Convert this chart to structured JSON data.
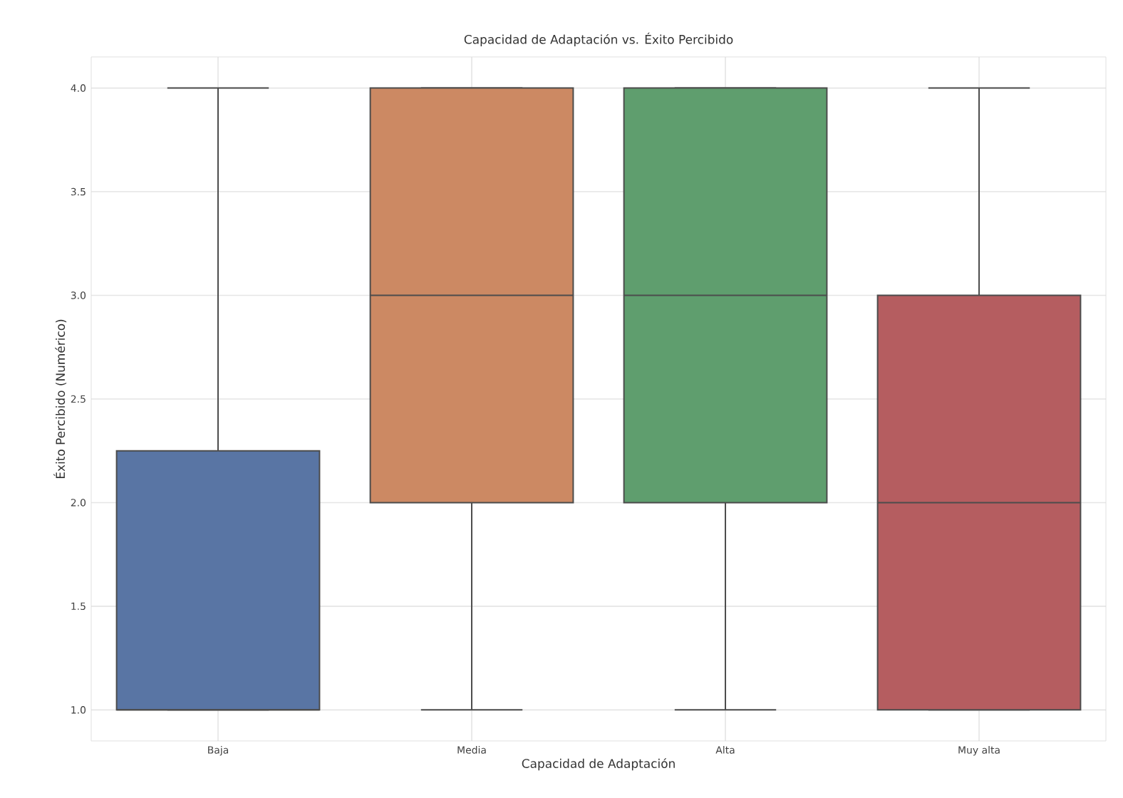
{
  "chart_data": {
    "type": "box",
    "title": "Capacidad de Adaptación vs. Éxito Percibido",
    "xlabel": "Capacidad de Adaptación",
    "ylabel": "Éxito Percibido (Numérico)",
    "categories": [
      "Baja",
      "Media",
      "Alta",
      "Muy alta"
    ],
    "colors": [
      "#5975a4",
      "#cc8963",
      "#5f9e6e",
      "#b55d60"
    ],
    "boxes": [
      {
        "low": 1,
        "q1": 1,
        "median": 1,
        "q3": 2.25,
        "high": 4
      },
      {
        "low": 1,
        "q1": 2,
        "median": 3,
        "q3": 4,
        "high": 4
      },
      {
        "low": 1,
        "q1": 2,
        "median": 3,
        "q3": 4,
        "high": 4
      },
      {
        "low": 1,
        "q1": 1,
        "median": 2,
        "q3": 3,
        "high": 4
      }
    ],
    "ylim": [
      0.85,
      4.15
    ],
    "yticks": [
      {
        "value": 1,
        "label": "1.0"
      },
      1.5,
      {
        "value": 2,
        "label": "2.0"
      },
      2.5,
      {
        "value": 3,
        "label": "3.0"
      },
      3.5,
      {
        "value": 4,
        "label": "4.0"
      }
    ],
    "grid": true
  }
}
